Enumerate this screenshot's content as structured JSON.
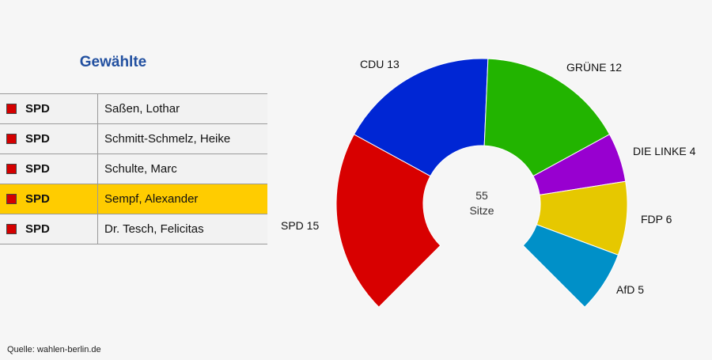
{
  "table": {
    "title": "Gewählte",
    "rows": [
      {
        "party": "SPD",
        "name": "Saßen, Lothar",
        "highlighted": false
      },
      {
        "party": "SPD",
        "name": "Schmitt-Schmelz, Heike",
        "highlighted": false
      },
      {
        "party": "SPD",
        "name": "Schulte, Marc",
        "highlighted": false
      },
      {
        "party": "SPD",
        "name": "Sempf, Alexander",
        "highlighted": true
      },
      {
        "party": "SPD",
        "name": "Dr. Tesch, Felicitas",
        "highlighted": false
      }
    ],
    "party_color": "#d40000",
    "highlight_color": "#ffcc00"
  },
  "source": "Quelle: wahlen-berlin.de",
  "chart_data": {
    "type": "pie",
    "variant": "parliament-semicircle",
    "total_seats": 55,
    "center_label": {
      "value": "55",
      "unit": "Sitze"
    },
    "categories": [
      "SPD",
      "CDU",
      "GRÜNE",
      "DIE LINKE",
      "FDP",
      "AfD"
    ],
    "values": [
      15,
      13,
      12,
      4,
      6,
      5
    ],
    "labels": [
      "SPD 15",
      "CDU 13",
      "GRÜNE 12",
      "DIE LINKE 4",
      "FDP 6",
      "AfD 5"
    ],
    "colors": [
      "#d80000",
      "#0026d4",
      "#22b400",
      "#9800d0",
      "#e6c800",
      "#0090c8"
    ],
    "legend": "none"
  }
}
